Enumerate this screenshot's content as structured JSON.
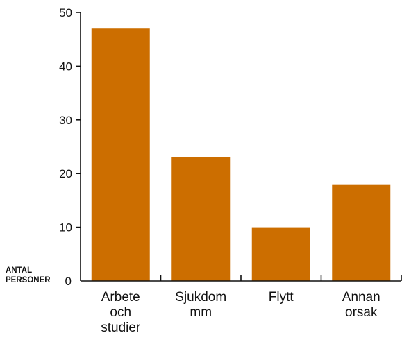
{
  "chart_data": {
    "type": "bar",
    "title": "",
    "xlabel": "",
    "ylabel": [
      "ANTAL",
      "PERSONER"
    ],
    "categories": [
      [
        "Arbete",
        "och",
        "studier"
      ],
      [
        "Sjukdom",
        "mm"
      ],
      [
        "Flytt"
      ],
      [
        "Annan",
        "orsak"
      ]
    ],
    "values": [
      47,
      23,
      10,
      18
    ],
    "ylim": [
      0,
      50
    ],
    "yticks": [
      "0",
      "10",
      "20",
      "30",
      "40",
      "50"
    ],
    "bar_color": "#cc6e00",
    "grid": false
  }
}
